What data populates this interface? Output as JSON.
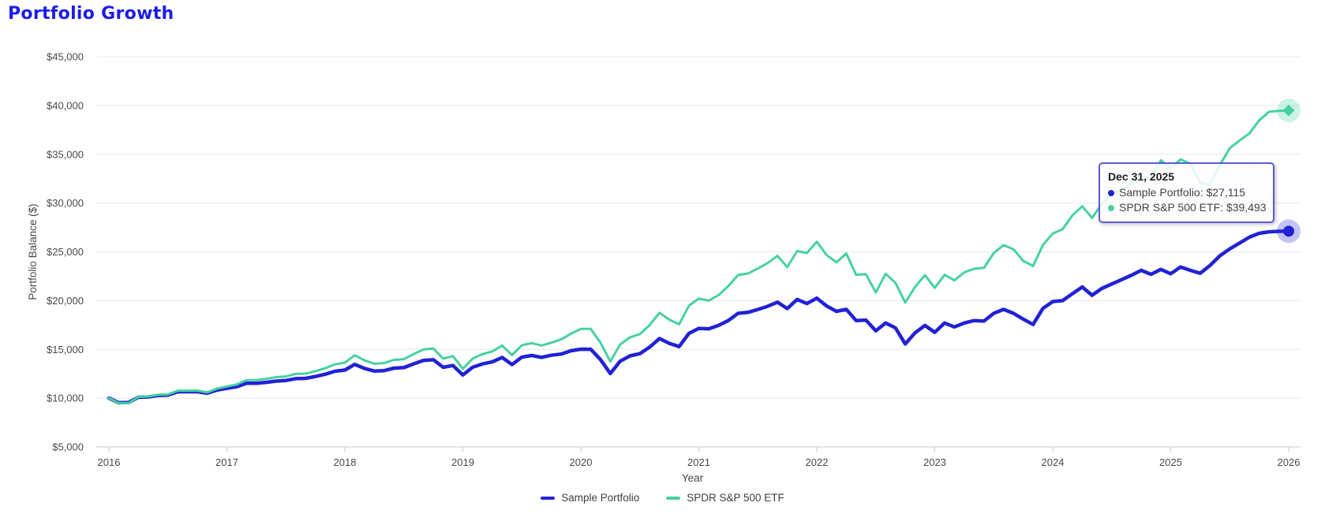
{
  "page": {
    "title": "Portfolio Growth"
  },
  "colors": {
    "title": "#1c1ce8",
    "sample_portfolio": "#2121d6",
    "spdr_sp500": "#46d1a0",
    "grid": "#e8e8e8",
    "axis": "#c7c7c7",
    "tick_text": "#45494c",
    "tooltip_border": "#5b5bd8"
  },
  "chart_data": {
    "type": "line",
    "title": "Portfolio Growth",
    "xlabel": "Year",
    "ylabel": "Portfolio Balance ($)",
    "x_tick_labels": [
      "2016",
      "2017",
      "2018",
      "2019",
      "2020",
      "2021",
      "2022",
      "2023",
      "2024",
      "2025",
      "2026"
    ],
    "y_tick_labels": [
      "$5,000",
      "$10,000",
      "$15,000",
      "$20,000",
      "$25,000",
      "$30,000",
      "$35,000",
      "$40,000",
      "$45,000"
    ],
    "y_tick_values": [
      5000,
      10000,
      15000,
      20000,
      25000,
      30000,
      35000,
      40000,
      45000
    ],
    "ylim": [
      5000,
      45000
    ],
    "x_start_year": 2016,
    "x_end_year": 2026,
    "frequency": "monthly",
    "grid": true,
    "legend_position": "bottom",
    "series": [
      {
        "name": "Sample Portfolio",
        "color": "#2121d6",
        "end_marker": "circle",
        "final_value": 27115,
        "values": [
          10000,
          9530,
          9560,
          10090,
          10120,
          10280,
          10310,
          10650,
          10660,
          10660,
          10500,
          10830,
          11010,
          11170,
          11520,
          11530,
          11620,
          11750,
          11810,
          12000,
          12030,
          12220,
          12450,
          12760,
          12880,
          13460,
          13050,
          12770,
          12820,
          13070,
          13130,
          13520,
          13870,
          13940,
          13160,
          13350,
          12380,
          13170,
          13510,
          13720,
          14170,
          13440,
          14200,
          14370,
          14180,
          14400,
          14520,
          14860,
          15020,
          15010,
          13950,
          12520,
          13780,
          14330,
          14560,
          15230,
          16110,
          15620,
          15290,
          16640,
          17150,
          17100,
          17450,
          17950,
          18700,
          18790,
          19090,
          19420,
          19840,
          19180,
          20120,
          19700,
          20250,
          19450,
          18900,
          19100,
          17950,
          18000,
          16900,
          17700,
          17200,
          15550,
          16700,
          17450,
          16750,
          17700,
          17300,
          17700,
          17950,
          17900,
          18700,
          19100,
          18700,
          18100,
          17550,
          19200,
          19900,
          20000,
          20700,
          21400,
          20550,
          21250,
          21700,
          22150,
          22600,
          23100,
          22700,
          23200,
          22750,
          23450,
          23100,
          22800,
          23600,
          24600,
          25300,
          25900,
          26500,
          26900,
          27050,
          27100,
          27115
        ]
      },
      {
        "name": "SPDR S&P 500 ETF",
        "color": "#46d1a0",
        "end_marker": "diamond",
        "final_value": 39493,
        "values": [
          10000,
          9502,
          9494,
          10132,
          10172,
          10345,
          10381,
          10760,
          10773,
          10774,
          10588,
          10977,
          11200,
          11400,
          11848,
          11864,
          11981,
          12150,
          12228,
          12480,
          12516,
          12767,
          13069,
          13469,
          13632,
          14400,
          13876,
          13524,
          13594,
          13924,
          14006,
          14527,
          15001,
          15089,
          14047,
          14306,
          13014,
          14057,
          14508,
          14790,
          15389,
          14407,
          15422,
          15644,
          15397,
          15685,
          16025,
          16605,
          17107,
          17100,
          15691,
          13753,
          15500,
          16238,
          16561,
          17495,
          18753,
          18052,
          17572,
          19484,
          20207,
          20001,
          20557,
          21490,
          22627,
          22776,
          23288,
          23856,
          24582,
          23436,
          25081,
          24880,
          26032,
          24660,
          23933,
          24833,
          22652,
          22704,
          20831,
          22750,
          21822,
          19805,
          21415,
          22606,
          21304,
          22644,
          22076,
          22895,
          23261,
          23361,
          24875,
          25688,
          25269,
          24071,
          23542,
          25691,
          26878,
          27308,
          28734,
          29674,
          28478,
          29919,
          30963,
          31338,
          32071,
          32748,
          32447,
          34381,
          33562,
          34468,
          34020,
          32115,
          31890,
          33899,
          35628,
          36412,
          37140,
          38477,
          39362,
          39441,
          39493
        ]
      }
    ]
  },
  "tooltip": {
    "date": "Dec 31, 2025",
    "items": [
      {
        "series": "Sample Portfolio",
        "text": "Sample Portfolio: $27,115",
        "color": "#2121d6"
      },
      {
        "series": "SPDR S&P 500 ETF",
        "text": "SPDR S&P 500 ETF: $39,493",
        "color": "#46d1a0"
      }
    ]
  },
  "legend": {
    "items": [
      {
        "label": "Sample Portfolio",
        "color": "#2121d6"
      },
      {
        "label": "SPDR S&P 500 ETF",
        "color": "#46d1a0"
      }
    ]
  }
}
